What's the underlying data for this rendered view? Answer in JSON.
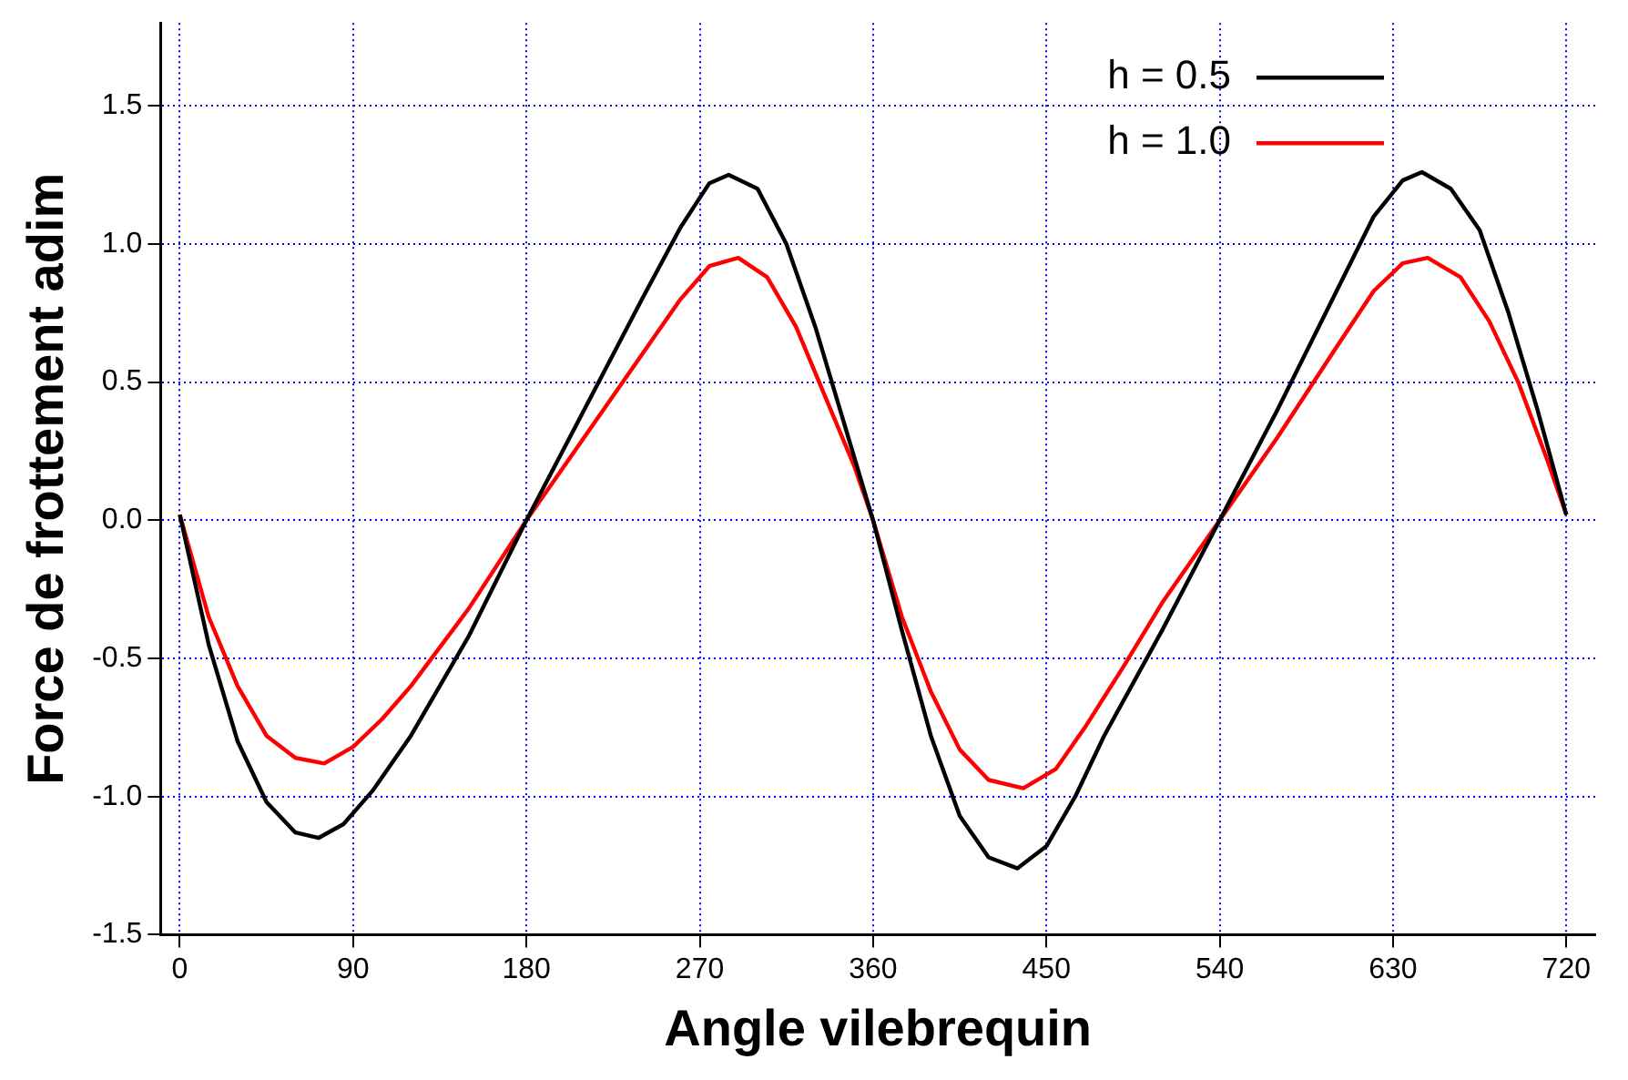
{
  "chart_data": {
    "type": "line",
    "xlabel": "Angle vilebrequin",
    "ylabel": "Force de frottement adim",
    "xlim": [
      -10,
      735
    ],
    "xticks": [
      0,
      90,
      180,
      270,
      360,
      450,
      540,
      630,
      720
    ],
    "ylim": [
      -1.5,
      1.8
    ],
    "yticks": [
      {
        "value": -1.5,
        "label": "-1.5"
      },
      {
        "value": -1,
        "label": "-1.0"
      },
      {
        "value": -0.5,
        "label": "-0.5"
      },
      {
        "value": 0,
        "label": "0.0"
      },
      {
        "value": 0.5,
        "label": "0.5"
      },
      {
        "value": 1,
        "label": "1.0"
      },
      {
        "value": 1.5,
        "label": "1.5"
      }
    ],
    "grid": true,
    "legend": "top right",
    "marker": "none",
    "line_style": "solid",
    "series": [
      {
        "name": "h = 0.5",
        "color": "#000000",
        "x": [
          0,
          15,
          30,
          45,
          60,
          72,
          85,
          100,
          120,
          150,
          180,
          210,
          240,
          260,
          275,
          285,
          300,
          315,
          330,
          345,
          360,
          375,
          390,
          405,
          420,
          435,
          450,
          465,
          480,
          510,
          540,
          570,
          600,
          620,
          635,
          645,
          660,
          675,
          690,
          705,
          720
        ],
        "values": [
          0.02,
          -0.45,
          -0.8,
          -1.02,
          -1.13,
          -1.15,
          -1.1,
          -0.98,
          -0.78,
          -0.42,
          0.0,
          0.4,
          0.8,
          1.06,
          1.22,
          1.25,
          1.2,
          1.0,
          0.7,
          0.35,
          0.0,
          -0.4,
          -0.78,
          -1.07,
          -1.22,
          -1.26,
          -1.18,
          -1.0,
          -0.78,
          -0.4,
          0.0,
          0.4,
          0.82,
          1.1,
          1.23,
          1.26,
          1.2,
          1.05,
          0.75,
          0.4,
          0.02
        ]
      },
      {
        "name": "h = 1.0",
        "color": "#ff0000",
        "x": [
          0,
          15,
          30,
          45,
          60,
          75,
          90,
          105,
          120,
          150,
          180,
          210,
          240,
          260,
          275,
          290,
          305,
          320,
          335,
          350,
          360,
          375,
          390,
          405,
          420,
          438,
          455,
          470,
          490,
          510,
          540,
          570,
          600,
          620,
          635,
          648,
          665,
          680,
          695,
          710,
          720
        ],
        "values": [
          0.02,
          -0.35,
          -0.6,
          -0.78,
          -0.86,
          -0.88,
          -0.82,
          -0.72,
          -0.6,
          -0.32,
          0.0,
          0.3,
          0.6,
          0.8,
          0.92,
          0.95,
          0.88,
          0.7,
          0.45,
          0.2,
          0.0,
          -0.35,
          -0.62,
          -0.83,
          -0.94,
          -0.97,
          -0.9,
          -0.75,
          -0.53,
          -0.3,
          0.0,
          0.3,
          0.62,
          0.83,
          0.93,
          0.95,
          0.88,
          0.72,
          0.5,
          0.22,
          0.02
        ]
      }
    ]
  }
}
